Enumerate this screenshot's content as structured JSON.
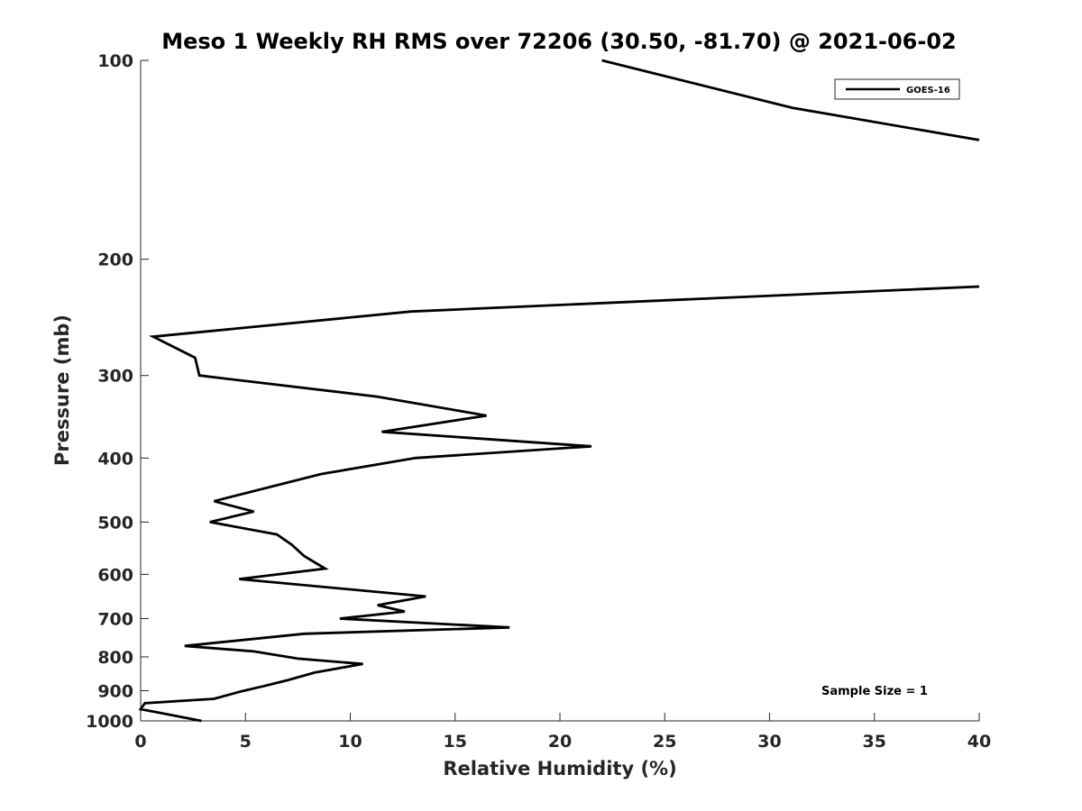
{
  "chart_data": {
    "type": "line",
    "title": "Meso 1 Weekly RH RMS over 72206 (30.50, -81.70) @ 2021-06-02",
    "xlabel": "Relative Humidity (%)",
    "ylabel": "Pressure (mb)",
    "xlim": [
      0,
      40
    ],
    "ylim": [
      100,
      1000
    ],
    "yscale": "log",
    "y_reversed": true,
    "grid": false,
    "legend_position": "top-right",
    "x_ticks": [
      0,
      5,
      10,
      15,
      20,
      25,
      30,
      35,
      40
    ],
    "x_tick_labels": [
      "0",
      "5",
      "10",
      "15",
      "20",
      "25",
      "30",
      "35",
      "40"
    ],
    "y_ticks": [
      100,
      200,
      300,
      400,
      500,
      600,
      700,
      800,
      900,
      1000
    ],
    "y_tick_labels": [
      "100",
      "200",
      "300",
      "400",
      "500",
      "600",
      "700",
      "800",
      "900",
      "1000"
    ],
    "series": [
      {
        "name": "GOES-16",
        "color": "#000000",
        "segments": [
          {
            "x": [
              22.0,
              31.1,
              40.0
            ],
            "y": [
              100,
              118,
              132
            ]
          },
          {
            "x": [
              40.0,
              12.9,
              0.6,
              2.6,
              2.8,
              11.3,
              16.5,
              11.5,
              21.5,
              13.1,
              8.6,
              3.5,
              5.4,
              3.3,
              6.5,
              7.2,
              7.8,
              8.8,
              4.7,
              13.6,
              11.3,
              12.6,
              9.5,
              17.6,
              7.8,
              2.1,
              5.4,
              7.5,
              10.6,
              8.3,
              7.0,
              5.8,
              4.8,
              3.5,
              0.2,
              0.0,
              1.1,
              2.9
            ],
            "y": [
              220,
              240,
              262,
              282,
              300,
              323,
              345,
              365,
              384,
              400,
              423,
              465,
              482,
              500,
              522,
              541,
              563,
              588,
              610,
              648,
              668,
              683,
              700,
              722,
              738,
              770,
              785,
              805,
              820,
              845,
              868,
              887,
              902,
              926,
              940,
              960,
              975,
              1000
            ]
          }
        ]
      }
    ],
    "legend": [
      "GOES-16"
    ],
    "annotations": [
      "Sample Size = 1"
    ]
  }
}
